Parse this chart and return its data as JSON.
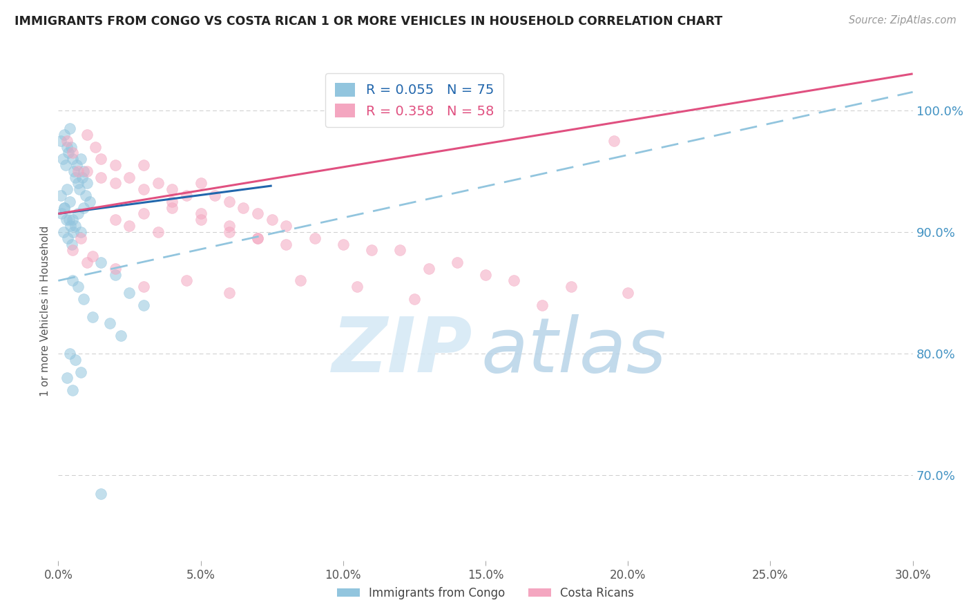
{
  "title": "IMMIGRANTS FROM CONGO VS COSTA RICAN 1 OR MORE VEHICLES IN HOUSEHOLD CORRELATION CHART",
  "source": "Source: ZipAtlas.com",
  "ylabel": "1 or more Vehicles in Household",
  "series1_label": "Immigrants from Congo",
  "series2_label": "Costa Ricans",
  "R1": 0.055,
  "N1": 75,
  "R2": 0.358,
  "N2": 58,
  "color1": "#92c5de",
  "color2": "#f4a6c0",
  "trend1_color": "#2166ac",
  "trend2_color": "#e05080",
  "dashed_color": "#92c5de",
  "xlim": [
    0.0,
    30.0
  ],
  "ylim": [
    63.0,
    104.0
  ],
  "yticks": [
    70.0,
    80.0,
    90.0,
    100.0
  ],
  "xticks": [
    0.0,
    5.0,
    10.0,
    15.0,
    20.0,
    25.0,
    30.0
  ],
  "background_color": "#ffffff",
  "grid_color": "#cccccc",
  "title_color": "#222222",
  "axis_label_color": "#555555",
  "right_tick_color": "#4393c3",
  "congo_x": [
    0.1,
    0.15,
    0.2,
    0.25,
    0.3,
    0.35,
    0.4,
    0.45,
    0.5,
    0.55,
    0.6,
    0.65,
    0.7,
    0.75,
    0.8,
    0.85,
    0.9,
    0.95,
    1.0,
    1.1,
    0.1,
    0.2,
    0.3,
    0.4,
    0.5,
    0.6,
    0.7,
    0.8,
    0.9,
    0.12,
    0.18,
    0.22,
    0.28,
    0.32,
    0.38,
    0.42,
    0.48,
    0.52,
    1.5,
    2.0,
    2.5,
    3.0,
    0.5,
    0.7,
    0.9,
    1.2,
    1.8,
    2.2,
    0.4,
    0.6,
    0.8,
    0.3,
    0.5,
    1.5
  ],
  "congo_y": [
    97.5,
    96.0,
    98.0,
    95.5,
    97.0,
    96.5,
    98.5,
    97.0,
    96.0,
    95.0,
    94.5,
    95.5,
    94.0,
    93.5,
    96.0,
    94.5,
    95.0,
    93.0,
    94.0,
    92.5,
    93.0,
    92.0,
    93.5,
    92.5,
    91.0,
    90.5,
    91.5,
    90.0,
    92.0,
    91.5,
    90.0,
    92.0,
    91.0,
    89.5,
    91.0,
    90.5,
    89.0,
    90.0,
    87.5,
    86.5,
    85.0,
    84.0,
    86.0,
    85.5,
    84.5,
    83.0,
    82.5,
    81.5,
    80.0,
    79.5,
    78.5,
    78.0,
    77.0,
    68.5
  ],
  "costa_x": [
    0.3,
    0.5,
    0.7,
    1.0,
    1.3,
    1.5,
    2.0,
    2.5,
    3.0,
    3.5,
    4.0,
    4.5,
    5.0,
    5.5,
    6.0,
    6.5,
    7.0,
    7.5,
    8.0,
    2.0,
    2.5,
    3.0,
    3.5,
    4.0,
    5.0,
    6.0,
    7.0,
    8.0,
    1.0,
    1.5,
    2.0,
    3.0,
    4.0,
    5.0,
    6.0,
    7.0,
    9.0,
    10.0,
    11.0,
    12.0,
    13.0,
    14.0,
    15.0,
    16.0,
    18.0,
    20.0,
    0.5,
    1.0,
    2.0,
    3.0,
    4.5,
    6.0,
    8.5,
    10.5,
    12.5,
    17.0,
    19.5,
    0.8,
    1.2
  ],
  "costa_y": [
    97.5,
    96.5,
    95.0,
    98.0,
    97.0,
    96.0,
    95.5,
    94.5,
    95.5,
    94.0,
    93.5,
    93.0,
    94.0,
    93.0,
    92.5,
    92.0,
    91.5,
    91.0,
    90.5,
    91.0,
    90.5,
    91.5,
    90.0,
    92.0,
    91.5,
    90.5,
    89.5,
    89.0,
    95.0,
    94.5,
    94.0,
    93.5,
    92.5,
    91.0,
    90.0,
    89.5,
    89.5,
    89.0,
    88.5,
    88.5,
    87.0,
    87.5,
    86.5,
    86.0,
    85.5,
    85.0,
    88.5,
    87.5,
    87.0,
    85.5,
    86.0,
    85.0,
    86.0,
    85.5,
    84.5,
    84.0,
    97.5,
    89.5,
    88.0
  ],
  "trend1_x0": 0.0,
  "trend1_x1": 7.5,
  "trend1_y0": 91.5,
  "trend1_y1": 93.8,
  "trend2_x0": 0.0,
  "trend2_x1": 30.0,
  "trend2_y0": 91.5,
  "trend2_y1": 103.0,
  "dashed_x0": 0.0,
  "dashed_x1": 30.0,
  "dashed_y0": 86.0,
  "dashed_y1": 101.5,
  "watermark_zip_color": "#d4e8f5",
  "watermark_atlas_color": "#b8d4e8"
}
